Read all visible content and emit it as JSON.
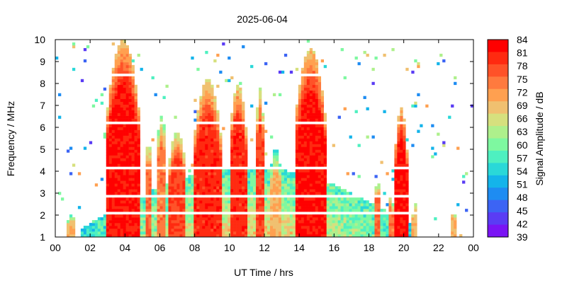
{
  "chart_data": {
    "type": "heatmap",
    "title": "2025-06-04",
    "xlabel": "UT Time / hrs",
    "ylabel": "Frequency / MHz",
    "colorbar_label": "Signal Amplitude / dB",
    "xlim": [
      0,
      24
    ],
    "ylim": [
      1,
      10
    ],
    "x_ticks": [
      "00",
      "02",
      "04",
      "06",
      "08",
      "10",
      "12",
      "14",
      "16",
      "18",
      "20",
      "22",
      "00"
    ],
    "y_ticks": [
      "1",
      "2",
      "3",
      "4",
      "5",
      "6",
      "7",
      "8",
      "9",
      "10"
    ],
    "colorbar_ticks": [
      "84",
      "81",
      "78",
      "75",
      "72",
      "69",
      "66",
      "63",
      "60",
      "57",
      "54",
      "51",
      "48",
      "45",
      "42",
      "39"
    ],
    "colorbar_range": [
      39,
      84
    ],
    "colorbar_colors": [
      "#ff0000",
      "#ff2a10",
      "#ff5228",
      "#ff7a3e",
      "#ffa050",
      "#f0c070",
      "#d6e07e",
      "#aef08c",
      "#7ef8a0",
      "#4ef0c0",
      "#2ad8d8",
      "#14b4ea",
      "#1e8cf2",
      "#3c64f4",
      "#5a3cf4",
      "#7a14f4"
    ],
    "colormap": "rainbow",
    "grid": false,
    "series": [
      {
        "bursts": [
          {
            "t_start": 3.0,
            "t_end": 4.8,
            "f_top": 10.0,
            "level": 84
          },
          {
            "t_start": 5.2,
            "t_end": 5.5,
            "f_top": 5.6,
            "level": 78
          },
          {
            "t_start": 5.8,
            "t_end": 6.4,
            "f_top": 6.6,
            "level": 76
          },
          {
            "t_start": 6.5,
            "t_end": 7.5,
            "f_top": 5.8,
            "level": 80
          },
          {
            "t_start": 8.0,
            "t_end": 9.5,
            "f_top": 8.2,
            "level": 82
          },
          {
            "t_start": 10.0,
            "t_end": 11.0,
            "f_top": 8.0,
            "level": 82
          },
          {
            "t_start": 11.5,
            "t_end": 12.0,
            "f_top": 7.8,
            "level": 80
          },
          {
            "t_start": 12.3,
            "t_end": 13.0,
            "f_top": 5.0,
            "level": 72
          },
          {
            "t_start": 13.8,
            "t_end": 15.5,
            "f_top": 9.6,
            "level": 84
          },
          {
            "t_start": 19.5,
            "t_end": 20.2,
            "f_top": 6.9,
            "level": 84
          },
          {
            "t_start": 18.3,
            "t_end": 18.7,
            "f_top": 3.5,
            "level": 78
          },
          {
            "t_start": 19.1,
            "t_end": 19.4,
            "f_top": 3.0,
            "level": 76
          },
          {
            "t_start": 20.5,
            "t_end": 20.8,
            "f_top": 2.6,
            "level": 72
          },
          {
            "t_start": 22.7,
            "t_end": 23.0,
            "f_top": 2.3,
            "level": 72
          },
          {
            "t_start": 0.7,
            "t_end": 1.2,
            "f_top": 2.0,
            "level": 72
          }
        ]
      }
    ]
  }
}
